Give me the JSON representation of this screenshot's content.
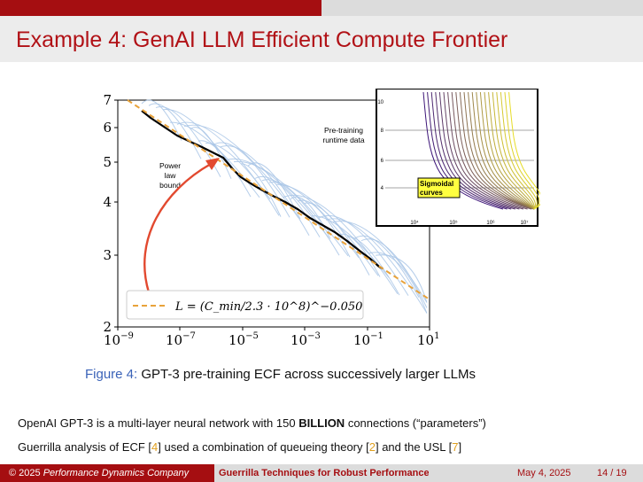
{
  "header": {
    "title": "Example 4: GenAI LLM Efficient Compute Frontier"
  },
  "figure": {
    "y_ticks": [
      "7",
      "6",
      "5",
      "4",
      "3",
      "2"
    ],
    "x_tick_bases": [
      "10",
      "10",
      "10",
      "10",
      "10",
      "10"
    ],
    "x_tick_exps": [
      "−9",
      "−7",
      "−5",
      "−3",
      "−1",
      "1"
    ],
    "annotation_power_law": [
      "Power",
      "law",
      "bound"
    ],
    "annotation_pretraining": [
      "Pre-training",
      "runtime data"
    ],
    "legend_formula": "L = (C_min/2.3 · 10^8)^−0.050",
    "inset": {
      "label": [
        "Sigmoidal",
        "curves"
      ],
      "y_ticks": [
        "10",
        "8",
        "6",
        "4"
      ],
      "x_ticks": [
        "10⁴",
        "10⁵",
        "10⁶",
        "10⁷"
      ]
    }
  },
  "caption": {
    "label": "Figure 4:",
    "text": " GPT-3 pre-training ECF across successively larger LLMs"
  },
  "body": {
    "line1_prefix": "OpenAI GPT-3 is a multi-layer neural network with 150 ",
    "line1_bold": "BILLION",
    "line1_suffix": " connections (“parameters”)",
    "line2_a": "Guerrilla analysis of ECF [",
    "line2_cite1": "4",
    "line2_b": "] used a combination of queueing theory [",
    "line2_cite2": "2",
    "line2_c": "] and the USL [",
    "line2_cite3": "7",
    "line2_d": "]"
  },
  "footer": {
    "copyright": "© 2025 ",
    "company": "Performance Dynamics Company",
    "talk_title": "Guerrilla Techniques for Robust Performance",
    "date": "May 4, 2025",
    "page": "14 / 19"
  },
  "colors": {
    "brand_red": "#a50e11",
    "bound_orange": "#e8a23a",
    "arrow_red": "#e2492f",
    "run_blue": "#a9c5e6"
  }
}
